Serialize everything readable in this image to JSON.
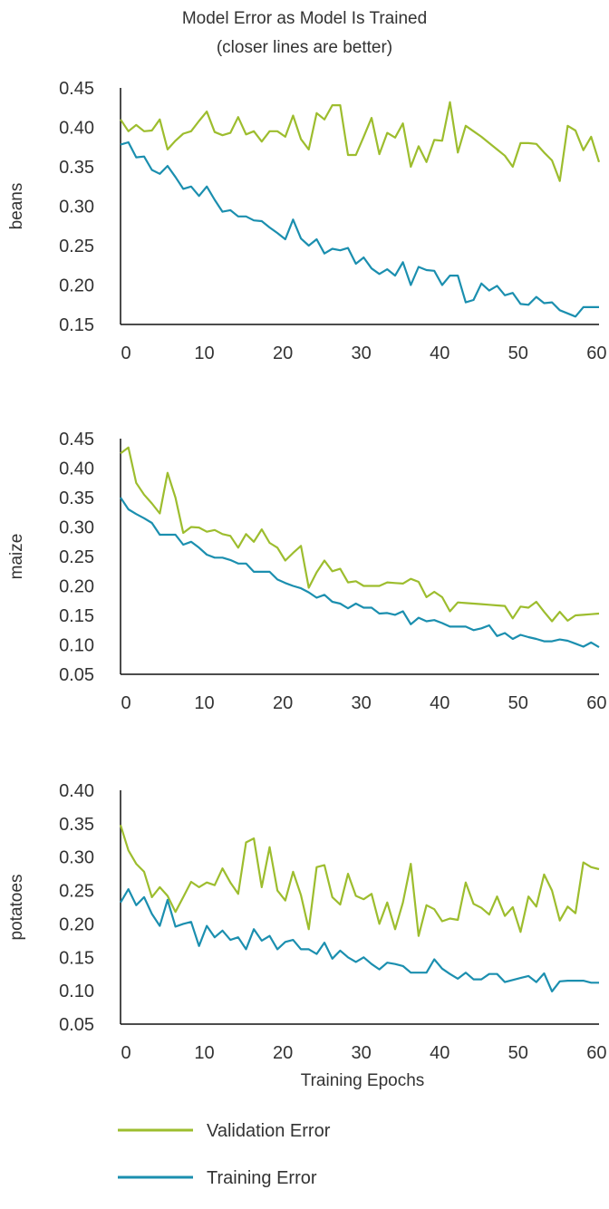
{
  "colors": {
    "validation": "#9DBD2E",
    "training": "#1B8FAF",
    "axis": "#111111",
    "text": "#333333"
  },
  "chart_data": {
    "type": "line",
    "title": "Model Error as Model Is Trained",
    "subtitle": "(closer lines are better)",
    "xlabel": "Training Epochs",
    "legend": [
      "Validation Error",
      "Training Error"
    ],
    "legend_position": "bottom-left",
    "grid": false,
    "panels": [
      {
        "ylabel": "beans",
        "xlim": [
          0,
          61
        ],
        "ylim": [
          0.15,
          0.45
        ],
        "xticks": [
          "0",
          "10",
          "20",
          "30",
          "40",
          "50",
          "60"
        ],
        "yticks": [
          "0.45",
          "0.40",
          "0.35",
          "0.30",
          "0.25",
          "0.20",
          "0.15"
        ],
        "series": [
          {
            "name": "Validation Error",
            "x": [
              0,
              1,
              2,
              3,
              4,
              5,
              6,
              7,
              8,
              9,
              10,
              11,
              12,
              13,
              14,
              15,
              16,
              17,
              18,
              19,
              20,
              21,
              22,
              23,
              24,
              25,
              26,
              27,
              28,
              29,
              30,
              31,
              32,
              33,
              34,
              35,
              36,
              37,
              38,
              39,
              40,
              41,
              42,
              43,
              44,
              45,
              46,
              47,
              48,
              49,
              50,
              51,
              52,
              53,
              54,
              55,
              56,
              57,
              58,
              59,
              60,
              61
            ],
            "values": [
              0.41,
              0.395,
              0.403,
              0.395,
              0.396,
              0.41,
              0.372,
              0.383,
              0.392,
              0.395,
              0.408,
              0.42,
              0.394,
              0.39,
              0.393,
              0.413,
              0.391,
              0.395,
              0.382,
              0.395,
              0.395,
              0.388,
              0.415,
              0.385,
              0.372,
              0.418,
              0.41,
              0.428,
              0.428,
              0.365,
              0.365,
              0.388,
              0.412,
              0.366,
              0.393,
              0.387,
              0.405,
              0.35,
              0.376,
              0.356,
              0.384,
              0.383,
              0.432,
              0.368,
              0.402,
              0.395,
              0.388,
              0.38,
              0.372,
              0.364,
              0.35,
              0.38,
              0.38,
              0.379,
              0.368,
              0.358,
              0.332,
              0.402,
              0.396,
              0.371,
              0.388,
              0.356
            ]
          },
          {
            "name": "Training Error",
            "x": [
              0,
              1,
              2,
              3,
              4,
              5,
              6,
              7,
              8,
              9,
              10,
              11,
              12,
              13,
              14,
              15,
              16,
              17,
              18,
              19,
              20,
              21,
              22,
              23,
              24,
              25,
              26,
              27,
              28,
              29,
              30,
              31,
              32,
              33,
              34,
              35,
              36,
              37,
              38,
              39,
              40,
              41,
              42,
              43,
              44,
              45,
              46,
              47,
              48,
              49,
              50,
              51,
              52,
              53,
              54,
              55,
              56,
              57,
              58,
              59,
              60,
              61
            ],
            "values": [
              0.378,
              0.381,
              0.362,
              0.363,
              0.346,
              0.341,
              0.351,
              0.337,
              0.322,
              0.325,
              0.313,
              0.325,
              0.308,
              0.293,
              0.295,
              0.287,
              0.287,
              0.282,
              0.281,
              0.273,
              0.266,
              0.258,
              0.283,
              0.259,
              0.25,
              0.258,
              0.24,
              0.246,
              0.244,
              0.247,
              0.227,
              0.235,
              0.221,
              0.214,
              0.22,
              0.212,
              0.229,
              0.2,
              0.223,
              0.219,
              0.218,
              0.2,
              0.212,
              0.212,
              0.178,
              0.181,
              0.202,
              0.193,
              0.199,
              0.187,
              0.19,
              0.176,
              0.175,
              0.185,
              0.177,
              0.178,
              0.168,
              0.164,
              0.16,
              0.172,
              0.172,
              0.172
            ]
          }
        ]
      },
      {
        "ylabel": "maize",
        "xlim": [
          0,
          61
        ],
        "ylim": [
          0.05,
          0.45
        ],
        "xticks": [
          "0",
          "10",
          "20",
          "30",
          "40",
          "50",
          "60"
        ],
        "yticks": [
          "0.45",
          "0.40",
          "0.35",
          "0.30",
          "0.25",
          "0.20",
          "0.15",
          "0.10",
          "0.05"
        ],
        "series": [
          {
            "name": "Validation Error",
            "x": [
              0,
              1,
              2,
              3,
              4,
              5,
              6,
              7,
              8,
              9,
              10,
              11,
              12,
              13,
              14,
              15,
              16,
              17,
              18,
              19,
              20,
              21,
              22,
              23,
              24,
              25,
              26,
              27,
              28,
              29,
              30,
              31,
              32,
              33,
              34,
              35,
              36,
              37,
              38,
              39,
              40,
              41,
              42,
              43,
              44,
              45,
              46,
              47,
              48,
              49,
              50,
              51,
              52,
              53,
              54,
              55,
              56,
              57,
              58,
              59,
              60,
              61
            ],
            "values": [
              0.425,
              0.435,
              0.375,
              0.355,
              0.34,
              0.323,
              0.392,
              0.35,
              0.29,
              0.3,
              0.299,
              0.292,
              0.295,
              0.288,
              0.285,
              0.265,
              0.288,
              0.275,
              0.296,
              0.273,
              0.265,
              0.243,
              0.256,
              0.268,
              0.197,
              0.223,
              0.243,
              0.225,
              0.229,
              0.206,
              0.208,
              0.2,
              0.2,
              0.2,
              0.206,
              0.205,
              0.204,
              0.212,
              0.207,
              0.181,
              0.19,
              0.181,
              0.157,
              0.172,
              0.171,
              0.17,
              0.169,
              0.168,
              0.167,
              0.166,
              0.145,
              0.165,
              0.163,
              0.173,
              0.156,
              0.14,
              0.156,
              0.141,
              0.15,
              0.151,
              0.152,
              0.153
            ]
          },
          {
            "name": "Training Error",
            "x": [
              0,
              1,
              2,
              3,
              4,
              5,
              6,
              7,
              8,
              9,
              10,
              11,
              12,
              13,
              14,
              15,
              16,
              17,
              18,
              19,
              20,
              21,
              22,
              23,
              24,
              25,
              26,
              27,
              28,
              29,
              30,
              31,
              32,
              33,
              34,
              35,
              36,
              37,
              38,
              39,
              40,
              41,
              42,
              43,
              44,
              45,
              46,
              47,
              48,
              49,
              50,
              51,
              52,
              53,
              54,
              55,
              56,
              57,
              58,
              59,
              60,
              61
            ],
            "values": [
              0.35,
              0.33,
              0.322,
              0.315,
              0.307,
              0.287,
              0.287,
              0.287,
              0.27,
              0.275,
              0.265,
              0.253,
              0.248,
              0.248,
              0.244,
              0.238,
              0.238,
              0.224,
              0.224,
              0.224,
              0.211,
              0.205,
              0.2,
              0.196,
              0.189,
              0.18,
              0.185,
              0.173,
              0.17,
              0.162,
              0.17,
              0.163,
              0.163,
              0.153,
              0.154,
              0.151,
              0.157,
              0.135,
              0.146,
              0.14,
              0.142,
              0.137,
              0.131,
              0.131,
              0.131,
              0.125,
              0.128,
              0.133,
              0.115,
              0.12,
              0.11,
              0.117,
              0.113,
              0.11,
              0.106,
              0.106,
              0.109,
              0.107,
              0.102,
              0.097,
              0.104,
              0.096
            ]
          }
        ]
      },
      {
        "ylabel": "potatoes",
        "xlim": [
          0,
          61
        ],
        "ylim": [
          0.05,
          0.4
        ],
        "xticks": [
          "0",
          "10",
          "20",
          "30",
          "40",
          "50",
          "60"
        ],
        "yticks": [
          "0.40",
          "0.35",
          "0.30",
          "0.25",
          "0.20",
          "0.15",
          "0.10",
          "0.05"
        ],
        "series": [
          {
            "name": "Validation Error",
            "x": [
              0,
              1,
              2,
              3,
              4,
              5,
              6,
              7,
              8,
              9,
              10,
              11,
              12,
              13,
              14,
              15,
              16,
              17,
              18,
              19,
              20,
              21,
              22,
              23,
              24,
              25,
              26,
              27,
              28,
              29,
              30,
              31,
              32,
              33,
              34,
              35,
              36,
              37,
              38,
              39,
              40,
              41,
              42,
              43,
              44,
              45,
              46,
              47,
              48,
              49,
              50,
              51,
              52,
              53,
              54,
              55,
              56,
              57,
              58,
              59,
              60,
              61
            ],
            "values": [
              0.348,
              0.31,
              0.29,
              0.278,
              0.24,
              0.255,
              0.242,
              0.218,
              0.24,
              0.263,
              0.255,
              0.262,
              0.258,
              0.283,
              0.262,
              0.245,
              0.322,
              0.328,
              0.255,
              0.315,
              0.25,
              0.235,
              0.278,
              0.243,
              0.192,
              0.285,
              0.288,
              0.24,
              0.229,
              0.275,
              0.242,
              0.237,
              0.245,
              0.2,
              0.232,
              0.192,
              0.232,
              0.29,
              0.182,
              0.228,
              0.222,
              0.204,
              0.208,
              0.206,
              0.262,
              0.23,
              0.224,
              0.214,
              0.241,
              0.212,
              0.225,
              0.188,
              0.241,
              0.226,
              0.274,
              0.25,
              0.205,
              0.226,
              0.216,
              0.292,
              0.285,
              0.282
            ]
          },
          {
            "name": "Training Error",
            "x": [
              0,
              1,
              2,
              3,
              4,
              5,
              6,
              7,
              8,
              9,
              10,
              11,
              12,
              13,
              14,
              15,
              16,
              17,
              18,
              19,
              20,
              21,
              22,
              23,
              24,
              25,
              26,
              27,
              28,
              29,
              30,
              31,
              32,
              33,
              34,
              35,
              36,
              37,
              38,
              39,
              40,
              41,
              42,
              43,
              44,
              45,
              46,
              47,
              48,
              49,
              50,
              51,
              52,
              53,
              54,
              55,
              56,
              57,
              58,
              59,
              60,
              61
            ],
            "values": [
              0.232,
              0.252,
              0.228,
              0.24,
              0.215,
              0.197,
              0.236,
              0.196,
              0.2,
              0.203,
              0.167,
              0.197,
              0.18,
              0.19,
              0.176,
              0.18,
              0.162,
              0.192,
              0.175,
              0.182,
              0.162,
              0.173,
              0.176,
              0.162,
              0.162,
              0.155,
              0.172,
              0.148,
              0.16,
              0.15,
              0.143,
              0.15,
              0.14,
              0.132,
              0.142,
              0.14,
              0.137,
              0.127,
              0.127,
              0.127,
              0.147,
              0.133,
              0.125,
              0.118,
              0.127,
              0.117,
              0.117,
              0.125,
              0.125,
              0.113,
              0.116,
              0.119,
              0.122,
              0.113,
              0.126,
              0.099,
              0.114,
              0.115,
              0.115,
              0.115,
              0.112,
              0.112
            ]
          }
        ]
      }
    ]
  }
}
